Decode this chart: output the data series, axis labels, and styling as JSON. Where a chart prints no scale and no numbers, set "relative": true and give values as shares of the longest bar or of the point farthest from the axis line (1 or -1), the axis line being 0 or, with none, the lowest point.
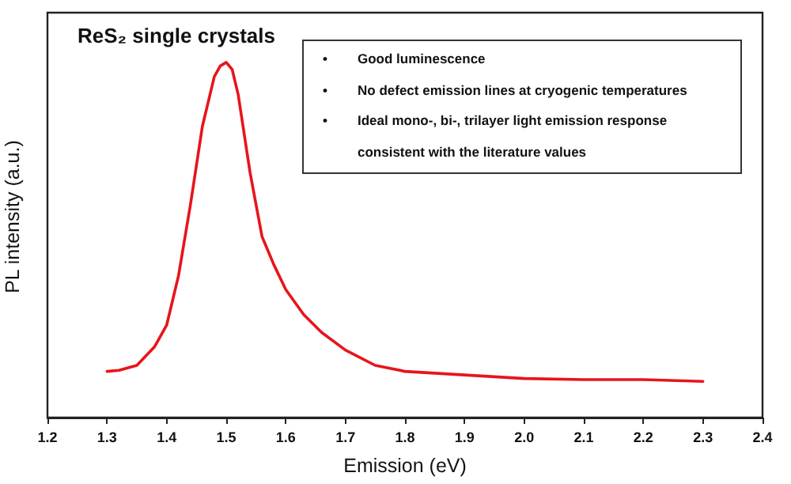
{
  "chart_data": {
    "type": "line",
    "title": "ReS₂ single crystals",
    "xlabel": "Emission (eV)",
    "ylabel": "PL intensity (a.u.)",
    "relative": true,
    "x": [
      1.3,
      1.32,
      1.35,
      1.38,
      1.4,
      1.42,
      1.44,
      1.46,
      1.48,
      1.49,
      1.5,
      1.51,
      1.52,
      1.54,
      1.56,
      1.58,
      1.6,
      1.63,
      1.66,
      1.7,
      1.75,
      1.8,
      1.9,
      2.0,
      2.1,
      2.2,
      2.3
    ],
    "series": [
      {
        "color": "#e8141b",
        "values": [
          0.13,
          0.133,
          0.147,
          0.2,
          0.26,
          0.4,
          0.6,
          0.82,
          0.96,
          0.99,
          1,
          0.98,
          0.91,
          0.69,
          0.51,
          0.43,
          0.36,
          0.29,
          0.24,
          0.19,
          0.147,
          0.13,
          0.12,
          0.11,
          0.107,
          0.107,
          0.102
        ]
      }
    ],
    "xlim": [
      1.2,
      2.4
    ],
    "xticks": [
      1.2,
      1.3,
      1.4,
      1.5,
      1.6,
      1.7,
      1.8,
      1.9,
      {
        "value": 2,
        "label": "2.0"
      },
      2.1,
      2.2,
      2.3,
      2.4
    ],
    "annotations": [
      "• Good luminescence",
      "• No defect emission lines at cryogenic temperatures",
      "• Ideal mono-, bi-, trilayer light emission response consistent with the literature values"
    ],
    "grid": false,
    "marker": "none",
    "line_style": "solid"
  }
}
